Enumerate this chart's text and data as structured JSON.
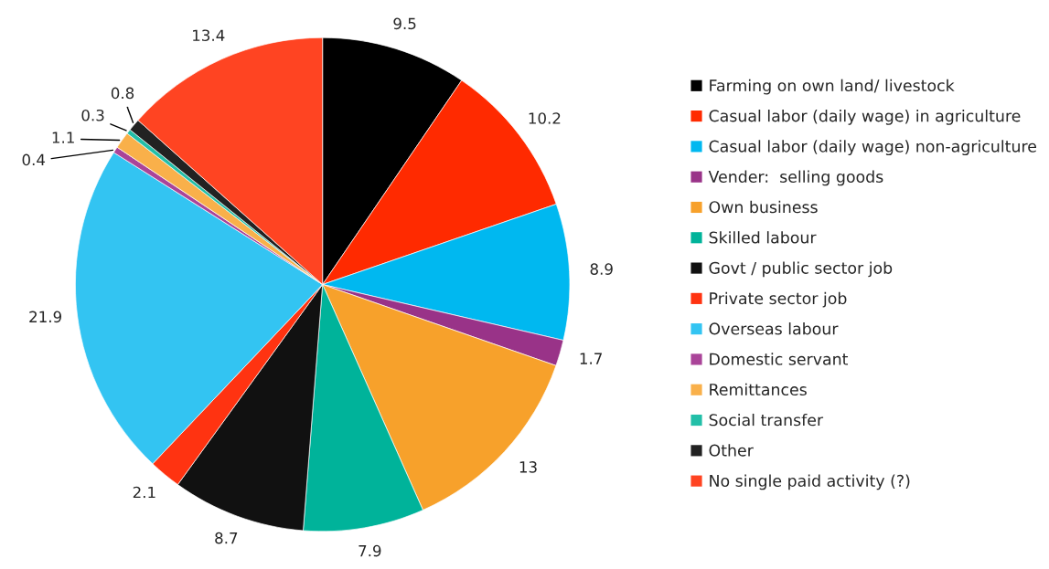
{
  "chart_data": {
    "type": "pie",
    "categories": [
      "Farming on own land/ livestock",
      "Casual labor (daily wage) in agriculture",
      "Casual labor (daily wage) non-agriculture",
      "Vender:  selling goods",
      "Own business",
      "Skilled labour",
      "Govt / public sector job",
      "Private sector job",
      "Overseas labour",
      "Domestic servant",
      "Remittances",
      "Social transfer",
      "Other",
      "No single paid activity (?)"
    ],
    "values": [
      9.5,
      10.2,
      8.9,
      1.7,
      13,
      7.9,
      8.7,
      2.1,
      21.9,
      0.4,
      1.1,
      0.3,
      0.8,
      13.4
    ],
    "colors": [
      "#000000",
      "#ff2a00",
      "#00b8f0",
      "#993388",
      "#f7a12b",
      "#00b39a",
      "#111111",
      "#ff3311",
      "#33c4f2",
      "#aa4499",
      "#f9b04a",
      "#22bfa8",
      "#222222",
      "#ff4422"
    ],
    "data_labels": true,
    "legend": "right"
  }
}
